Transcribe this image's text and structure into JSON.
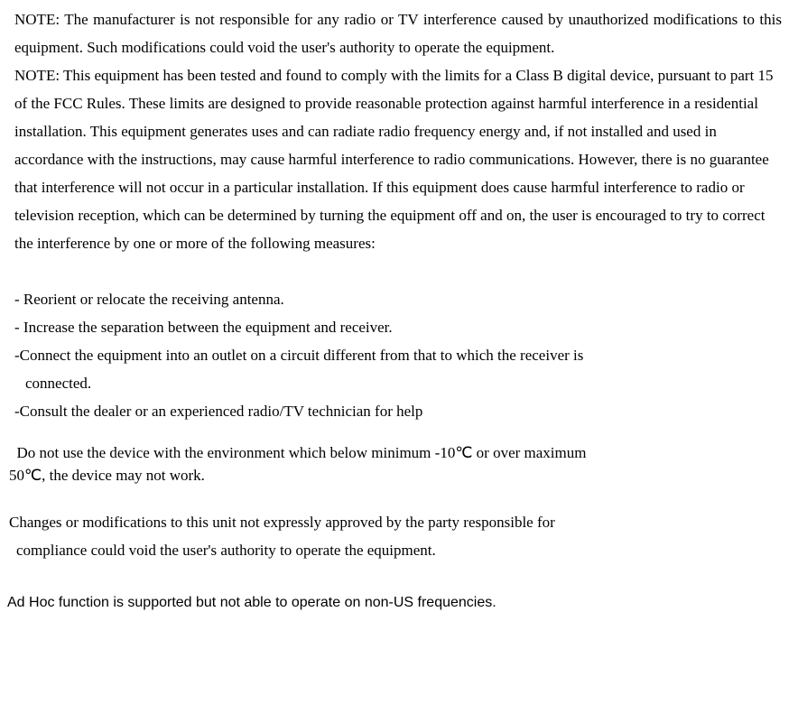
{
  "note1": "NOTE: The manufacturer is not responsible for any radio or TV interference caused by unauthorized modifications to this equipment. Such modifications could void the user's authority to operate the equipment.",
  "note2": "NOTE: This equipment has been tested and found to comply with the limits for a Class B digital device, pursuant to part 15 of the FCC Rules. These limits are designed to provide reasonable protection against harmful interference in a residential installation. This equipment generates uses and can radiate radio frequency energy and, if not installed and used in accordance with the instructions, may cause harmful interference to radio communications. However, there is no guarantee that interference will not occur in a particular installation. If this equipment does cause harmful interference to radio or television reception, which can be determined by turning the equipment off and on, the user is encouraged to try to correct the interference by one or more of the following measures:",
  "measures": {
    "m1": "- Reorient or relocate the receiving antenna.",
    "m2": "- Increase the separation between the equipment and receiver.",
    "m3a": "-Connect the equipment into an outlet on a circuit different from that to which the receiver is",
    "m3b": "connected.",
    "m4": "-Consult the dealer or an experienced radio/TV technician for help"
  },
  "temp_line1": " Do not use the device with the environment which below minimum -10℃ or over maximum",
  "temp_line2": "50℃, the device may not work.",
  "changes_line1": "Changes or modifications to this unit not expressly approved by the party responsible for",
  "changes_line2": "compliance could void the user's authority to operate the equipment.",
  "adhoc": "Ad Hoc function is supported but not able to operate on non-US frequencies."
}
